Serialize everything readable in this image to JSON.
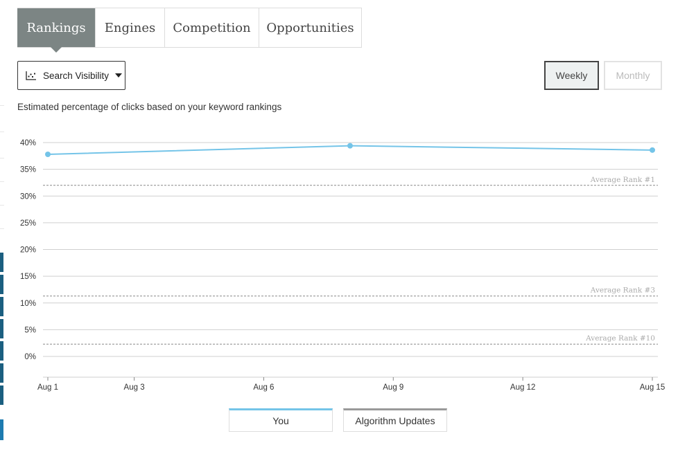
{
  "tabs": [
    {
      "label": "Rankings",
      "active": true
    },
    {
      "label": "Engines",
      "active": false
    },
    {
      "label": "Competition",
      "active": false
    },
    {
      "label": "Opportunities",
      "active": false
    }
  ],
  "metric_selector": {
    "label": "Search Visibility",
    "icon": "scatter-chart-icon"
  },
  "period_toggle": {
    "weekly_label": "Weekly",
    "monthly_label": "Monthly",
    "selected": "Weekly"
  },
  "subtitle": "Estimated percentage of clicks based on your keyword rankings",
  "legend": {
    "you_label": "You",
    "algo_label": "Algorithm Updates"
  },
  "colors": {
    "series": "#74c4e8",
    "active_tab": "#7c8584",
    "sidebar": "#1b5f80"
  },
  "chart_data": {
    "type": "line",
    "x_ticks": [
      "Aug 1",
      "Aug 3",
      "Aug 6",
      "Aug 9",
      "Aug 12",
      "Aug 15"
    ],
    "y_ticks": [
      "40%",
      "35%",
      "30%",
      "25%",
      "20%",
      "15%",
      "10%",
      "5%",
      "0%"
    ],
    "ylim": [
      0,
      40
    ],
    "series": [
      {
        "name": "You",
        "x": [
          "Aug 1",
          "Aug 8",
          "Aug 15"
        ],
        "values": [
          37.8,
          39.4,
          38.6
        ]
      }
    ],
    "reference_lines": [
      {
        "label": "Average Rank #1",
        "value": 32
      },
      {
        "label": "Average Rank #3",
        "value": 11.3
      },
      {
        "label": "Average Rank #10",
        "value": 2.3
      }
    ],
    "grid": true
  }
}
